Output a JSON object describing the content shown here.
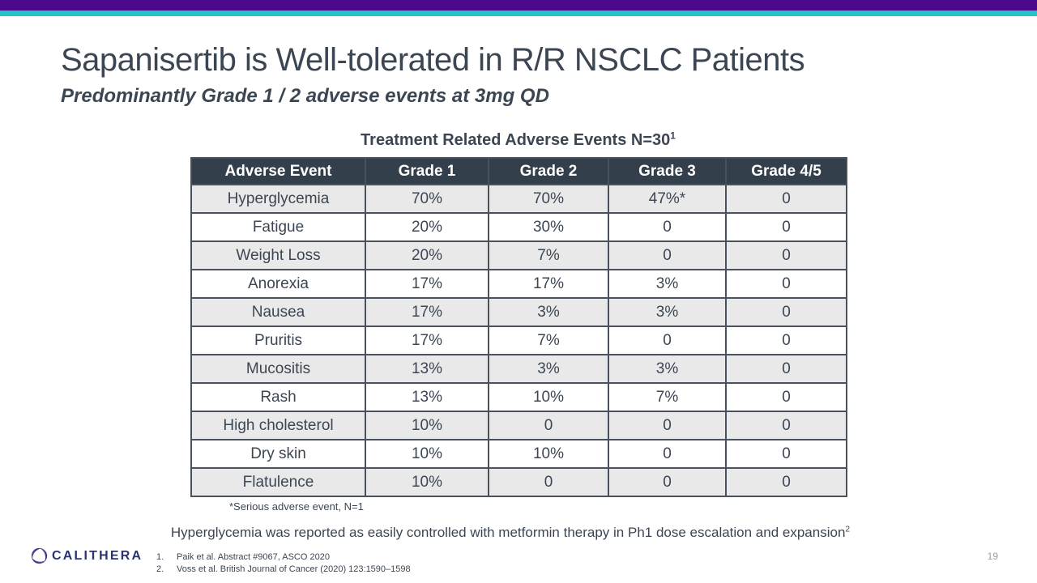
{
  "slide": {
    "title": "Sapanisertib is Well-tolerated in R/R NSCLC Patients",
    "subtitle": "Predominantly Grade 1 / 2 adverse events at 3mg QD",
    "page_number": "19"
  },
  "table": {
    "title": "Treatment Related Adverse Events N=30",
    "title_superscript": "1",
    "columns": [
      "Adverse Event",
      "Grade 1",
      "Grade 2",
      "Grade 3",
      "Grade 4/5"
    ],
    "rows": [
      [
        "Hyperglycemia",
        "70%",
        "70%",
        "47%*",
        "0"
      ],
      [
        "Fatigue",
        "20%",
        "30%",
        "0",
        "0"
      ],
      [
        "Weight Loss",
        "20%",
        "7%",
        "0",
        "0"
      ],
      [
        "Anorexia",
        "17%",
        "17%",
        "3%",
        "0"
      ],
      [
        "Nausea",
        "17%",
        "3%",
        "3%",
        "0"
      ],
      [
        "Pruritis",
        "17%",
        "7%",
        "0",
        "0"
      ],
      [
        "Mucositis",
        "13%",
        "3%",
        "3%",
        "0"
      ],
      [
        "Rash",
        "13%",
        "10%",
        "7%",
        "0"
      ],
      [
        "High cholesterol",
        "10%",
        "0",
        "0",
        "0"
      ],
      [
        "Dry skin",
        "10%",
        "10%",
        "0",
        "0"
      ],
      [
        "Flatulence",
        "10%",
        "0",
        "0",
        "0"
      ]
    ],
    "footnote": "*Serious adverse event, N=1"
  },
  "statement": {
    "text": "Hyperglycemia was reported as easily controlled with metformin therapy in Ph1 dose escalation and expansion",
    "superscript": "2"
  },
  "footer": {
    "logo_text": "CALITHERA",
    "references": [
      {
        "num": "1.",
        "text": "Paik et al. Abstract #9067, ASCO 2020"
      },
      {
        "num": "2.",
        "text": "Voss et al. British Journal of Cancer (2020) 123:1590–1598"
      }
    ]
  },
  "colors": {
    "purple": "#4B0A8C",
    "teal": "#26C3C4",
    "ink": "#3C4653",
    "header_bg": "#333F4B",
    "table_border": "#49525C",
    "zebra": "#E9E9EA",
    "logo_navy": "#2A3272",
    "page_gray": "#9AA0A6"
  }
}
